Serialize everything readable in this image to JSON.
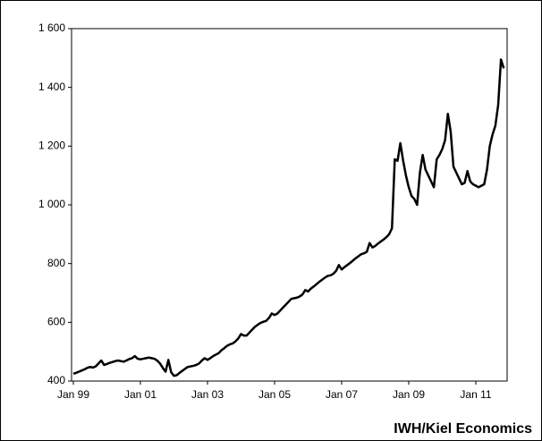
{
  "chart_data": {
    "type": "line",
    "source": "IWH/Kiel Economics",
    "x": [
      "Jan 99",
      "Feb 99",
      "Mar 99",
      "Apr 99",
      "May 99",
      "Jun 99",
      "Jul 99",
      "Aug 99",
      "Sep 99",
      "Oct 99",
      "Nov 99",
      "Dec 99",
      "Jan 00",
      "Feb 00",
      "Mar 00",
      "Apr 00",
      "May 00",
      "Jun 00",
      "Jul 00",
      "Aug 00",
      "Sep 00",
      "Oct 00",
      "Nov 00",
      "Dec 00",
      "Jan 01",
      "Feb 01",
      "Mar 01",
      "Apr 01",
      "May 01",
      "Jun 01",
      "Jul 01",
      "Aug 01",
      "Sep 01",
      "Oct 01",
      "Nov 01",
      "Dec 01",
      "Jan 02",
      "Feb 02",
      "Mar 02",
      "Apr 02",
      "May 02",
      "Jun 02",
      "Jul 02",
      "Aug 02",
      "Sep 02",
      "Oct 02",
      "Nov 02",
      "Dec 02",
      "Jan 03",
      "Feb 03",
      "Mar 03",
      "Apr 03",
      "May 03",
      "Jun 03",
      "Jul 03",
      "Aug 03",
      "Sep 03",
      "Oct 03",
      "Nov 03",
      "Dec 03",
      "Jan 04",
      "Feb 04",
      "Mar 04",
      "Apr 04",
      "May 04",
      "Jun 04",
      "Jul 04",
      "Aug 04",
      "Sep 04",
      "Oct 04",
      "Nov 04",
      "Dec 04",
      "Jan 05",
      "Feb 05",
      "Mar 05",
      "Apr 05",
      "May 05",
      "Jun 05",
      "Jul 05",
      "Aug 05",
      "Sep 05",
      "Oct 05",
      "Nov 05",
      "Dec 05",
      "Jan 06",
      "Feb 06",
      "Mar 06",
      "Apr 06",
      "May 06",
      "Jun 06",
      "Jul 06",
      "Aug 06",
      "Sep 06",
      "Oct 06",
      "Nov 06",
      "Dec 06",
      "Jan 07",
      "Feb 07",
      "Mar 07",
      "Apr 07",
      "May 07",
      "Jun 07",
      "Jul 07",
      "Aug 07",
      "Sep 07",
      "Oct 07",
      "Nov 07",
      "Dec 07",
      "Jan 08",
      "Feb 08",
      "Mar 08",
      "Apr 08",
      "May 08",
      "Jun 08",
      "Jul 08",
      "Aug 08",
      "Sep 08",
      "Oct 08",
      "Nov 08",
      "Dec 08",
      "Jan 09",
      "Feb 09",
      "Mar 09",
      "Apr 09",
      "May 09",
      "Jun 09",
      "Jul 09",
      "Aug 09",
      "Sep 09",
      "Oct 09",
      "Nov 09",
      "Dec 09",
      "Jan 10",
      "Feb 10",
      "Mar 10",
      "Apr 10",
      "May 10",
      "Jun 10",
      "Jul 10",
      "Aug 10",
      "Sep 10",
      "Oct 10",
      "Nov 10",
      "Dec 10",
      "Jan 11",
      "Feb 11",
      "Mar 11",
      "Apr 11",
      "May 11",
      "Jun 11",
      "Jul 11",
      "Aug 11",
      "Sep 11",
      "Oct 11",
      "Nov 11"
    ],
    "series": [
      {
        "color": "#000000",
        "values": [
          425,
          428,
          432,
          436,
          440,
          445,
          448,
          446,
          450,
          460,
          470,
          455,
          458,
          462,
          465,
          468,
          470,
          468,
          466,
          470,
          475,
          478,
          485,
          476,
          474,
          476,
          478,
          480,
          478,
          476,
          470,
          460,
          445,
          432,
          472,
          430,
          418,
          420,
          428,
          435,
          442,
          448,
          450,
          452,
          455,
          460,
          470,
          478,
          472,
          478,
          485,
          490,
          495,
          505,
          512,
          520,
          525,
          528,
          535,
          545,
          560,
          555,
          555,
          565,
          575,
          585,
          592,
          598,
          602,
          605,
          615,
          630,
          625,
          630,
          640,
          650,
          660,
          670,
          680,
          682,
          684,
          688,
          695,
          710,
          705,
          715,
          722,
          730,
          738,
          745,
          752,
          758,
          760,
          765,
          775,
          795,
          780,
          788,
          795,
          802,
          810,
          818,
          825,
          832,
          835,
          840,
          870,
          855,
          860,
          868,
          875,
          882,
          890,
          900,
          920,
          1155,
          1150,
          1210,
          1150,
          1100,
          1060,
          1030,
          1020,
          1000,
          1110,
          1170,
          1120,
          1100,
          1080,
          1060,
          1155,
          1170,
          1190,
          1220,
          1310,
          1250,
          1130,
          1110,
          1090,
          1070,
          1075,
          1115,
          1080,
          1070,
          1065,
          1060,
          1065,
          1070,
          1120,
          1200,
          1240,
          1270,
          1340,
          1495,
          1465
        ]
      }
    ],
    "xticks": [
      "Jan 99",
      "Jan 01",
      "Jan 03",
      "Jan 05",
      "Jan 07",
      "Jan 09",
      "Jan 11"
    ],
    "ylim": [
      400,
      1600
    ],
    "yticks": [
      400,
      600,
      800,
      {
        "value": 1000,
        "label": "1 000"
      },
      {
        "value": 1200,
        "label": "1 200"
      },
      {
        "value": 1400,
        "label": "1 400"
      },
      {
        "value": 1600,
        "label": "1 600"
      }
    ]
  }
}
